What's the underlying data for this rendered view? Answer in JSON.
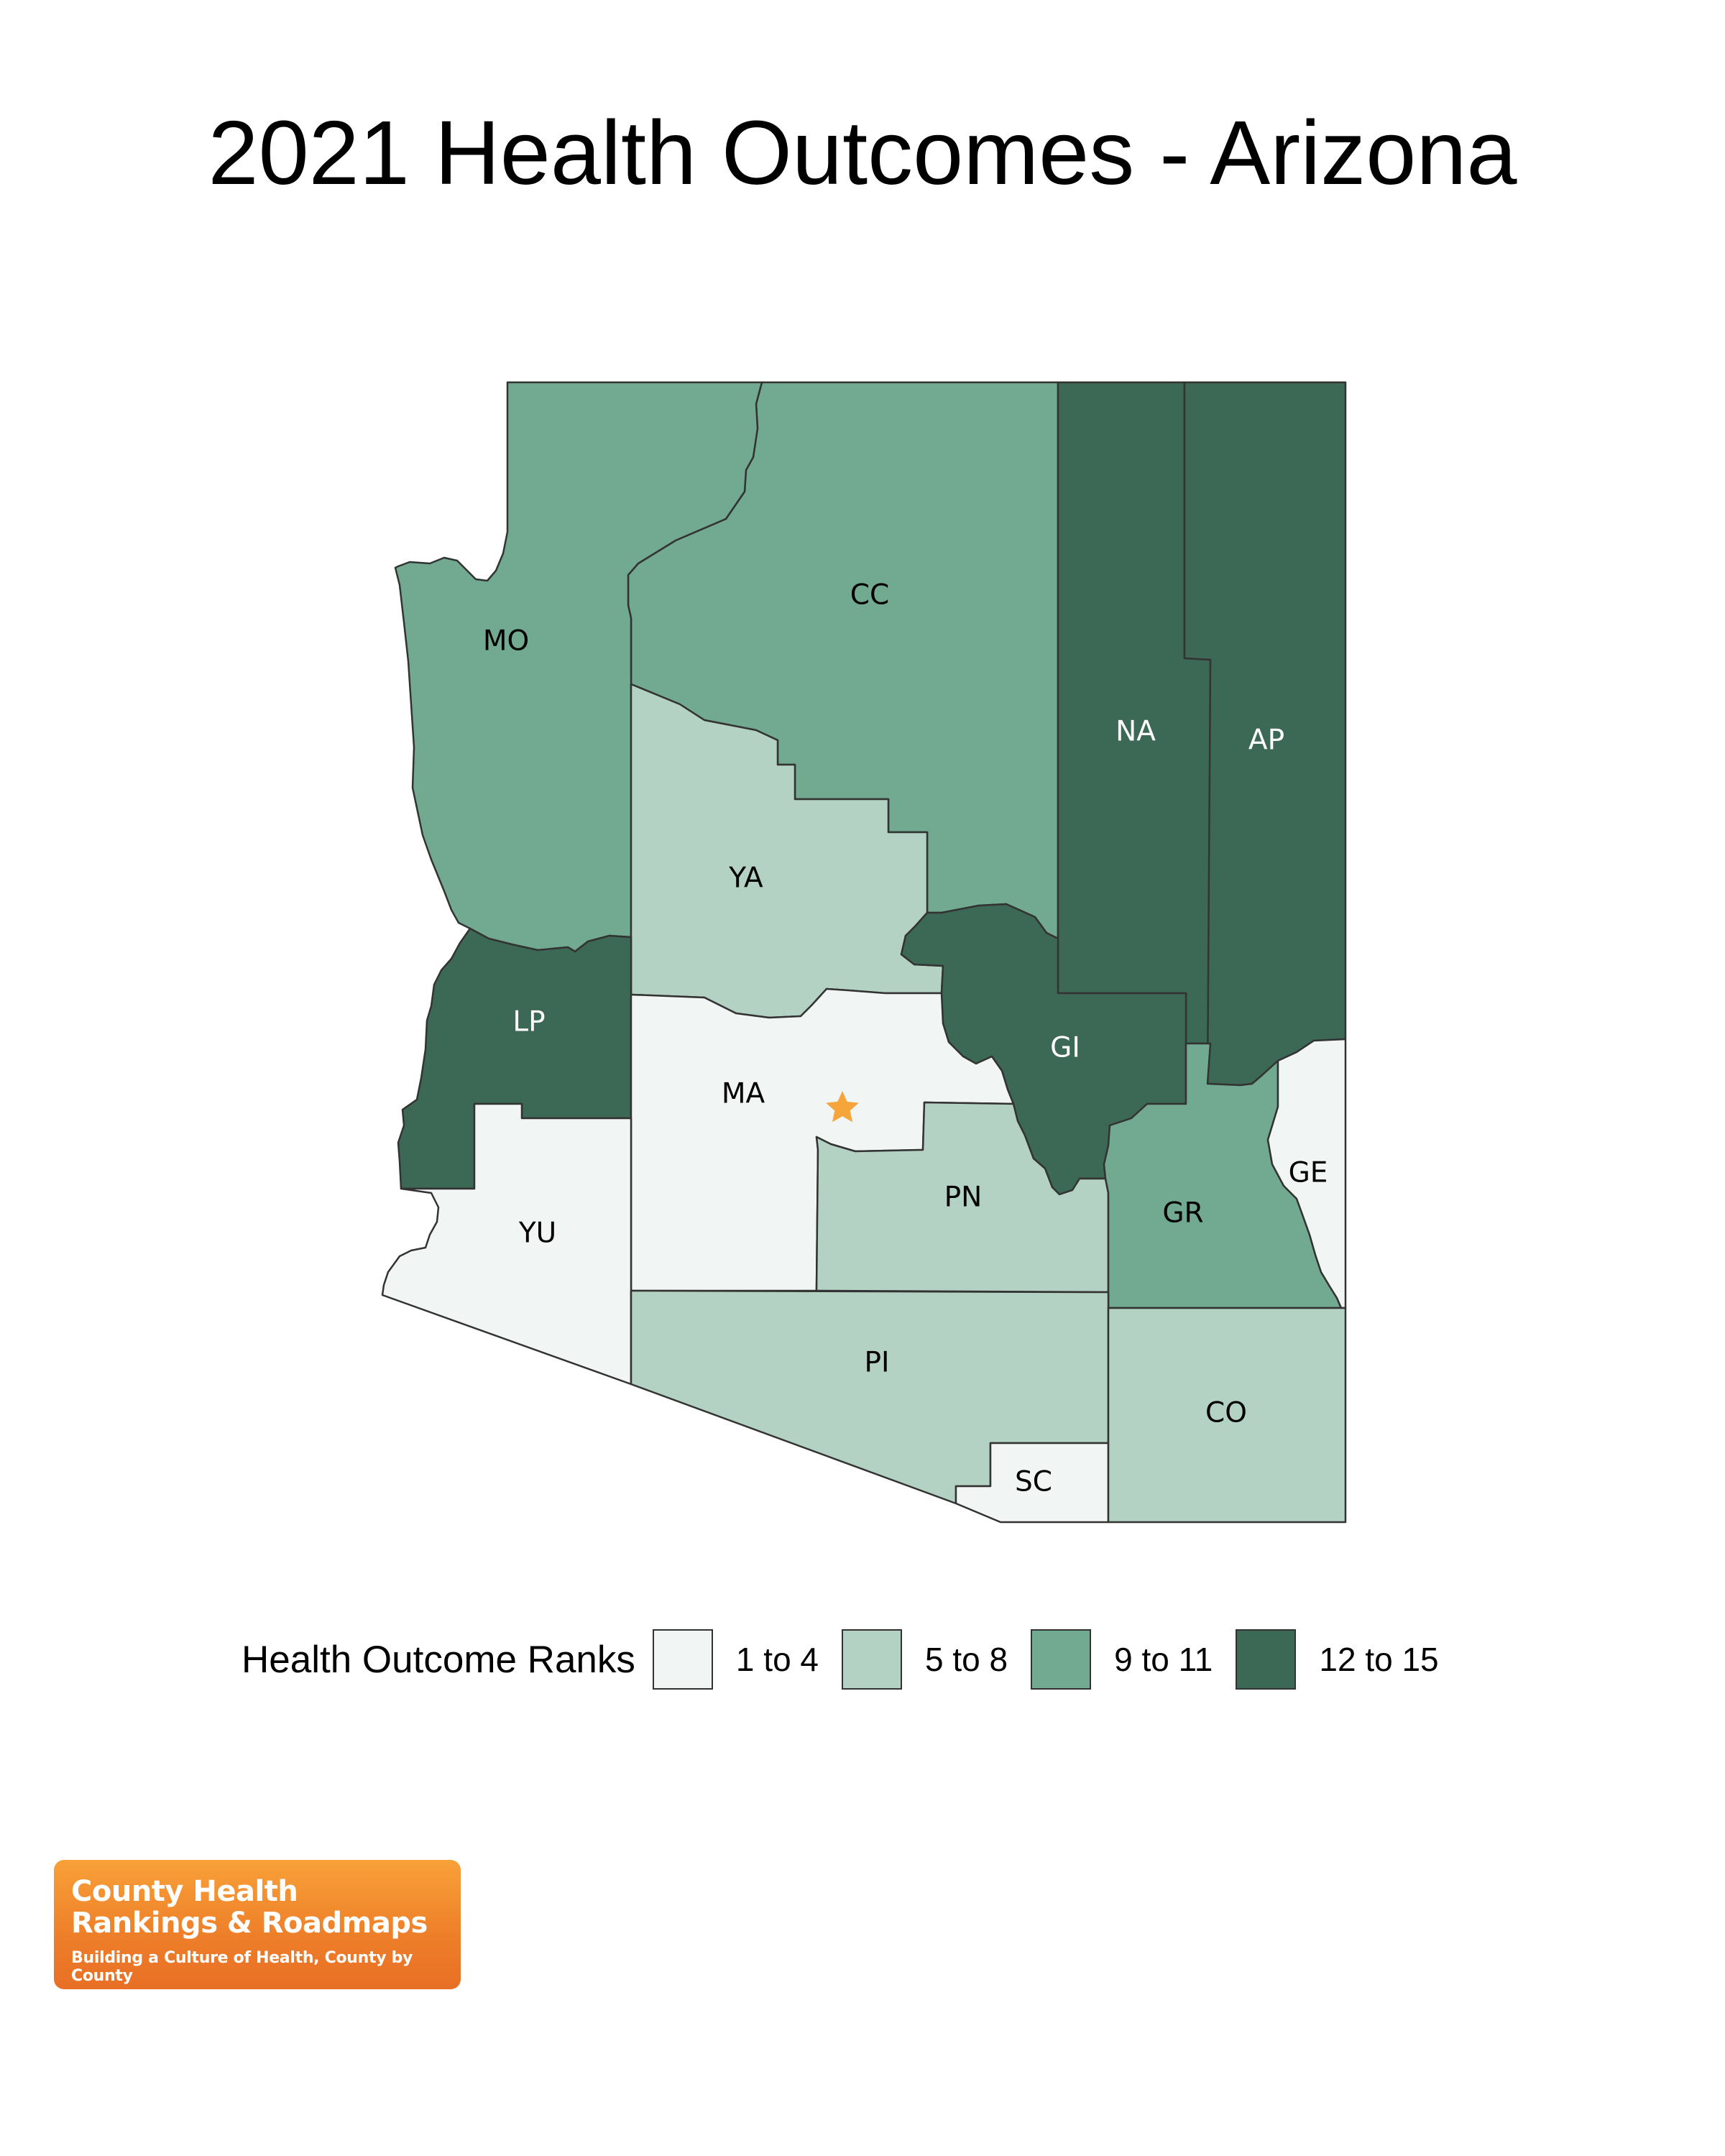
{
  "title": "2021 Health Outcomes - Arizona",
  "colors": {
    "rank_1_4": "#f1f5f3",
    "rank_5_8": "#b3d2c3",
    "rank_9_11": "#71aa91",
    "rank_12_15": "#3c6956",
    "border": "#333333",
    "star": "#f5a53a"
  },
  "counties": [
    {
      "code": "MO",
      "rank_group": "9 to 11",
      "label_color": "#000000"
    },
    {
      "code": "CC",
      "rank_group": "9 to 11",
      "label_color": "#000000"
    },
    {
      "code": "NA",
      "rank_group": "12 to 15",
      "label_color": "#ffffff"
    },
    {
      "code": "AP",
      "rank_group": "12 to 15",
      "label_color": "#ffffff"
    },
    {
      "code": "YA",
      "rank_group": "5 to 8",
      "label_color": "#000000"
    },
    {
      "code": "LP",
      "rank_group": "12 to 15",
      "label_color": "#ffffff"
    },
    {
      "code": "GI",
      "rank_group": "12 to 15",
      "label_color": "#ffffff"
    },
    {
      "code": "MA",
      "rank_group": "1 to 4",
      "label_color": "#000000"
    },
    {
      "code": "YU",
      "rank_group": "1 to 4",
      "label_color": "#000000"
    },
    {
      "code": "PN",
      "rank_group": "5 to 8",
      "label_color": "#000000"
    },
    {
      "code": "GE",
      "rank_group": "1 to 4",
      "label_color": "#000000"
    },
    {
      "code": "GR",
      "rank_group": "9 to 11",
      "label_color": "#000000"
    },
    {
      "code": "PI",
      "rank_group": "5 to 8",
      "label_color": "#000000"
    },
    {
      "code": "CO",
      "rank_group": "5 to 8",
      "label_color": "#000000"
    },
    {
      "code": "SC",
      "rank_group": "1 to 4",
      "label_color": "#000000"
    }
  ],
  "capital_marker": {
    "icon": "star-icon",
    "county": "MA"
  },
  "legend": {
    "title": "Health Outcome Ranks",
    "items": [
      {
        "label": "1 to 4",
        "color": "#f1f5f3"
      },
      {
        "label": "5 to 8",
        "color": "#b3d2c3"
      },
      {
        "label": "9 to 11",
        "color": "#71aa91"
      },
      {
        "label": "12 to 15",
        "color": "#3c6956"
      }
    ]
  },
  "logo": {
    "line1": "County Health",
    "line2": "Rankings & Roadmaps",
    "tagline": "Building a Culture of Health, County by County"
  }
}
